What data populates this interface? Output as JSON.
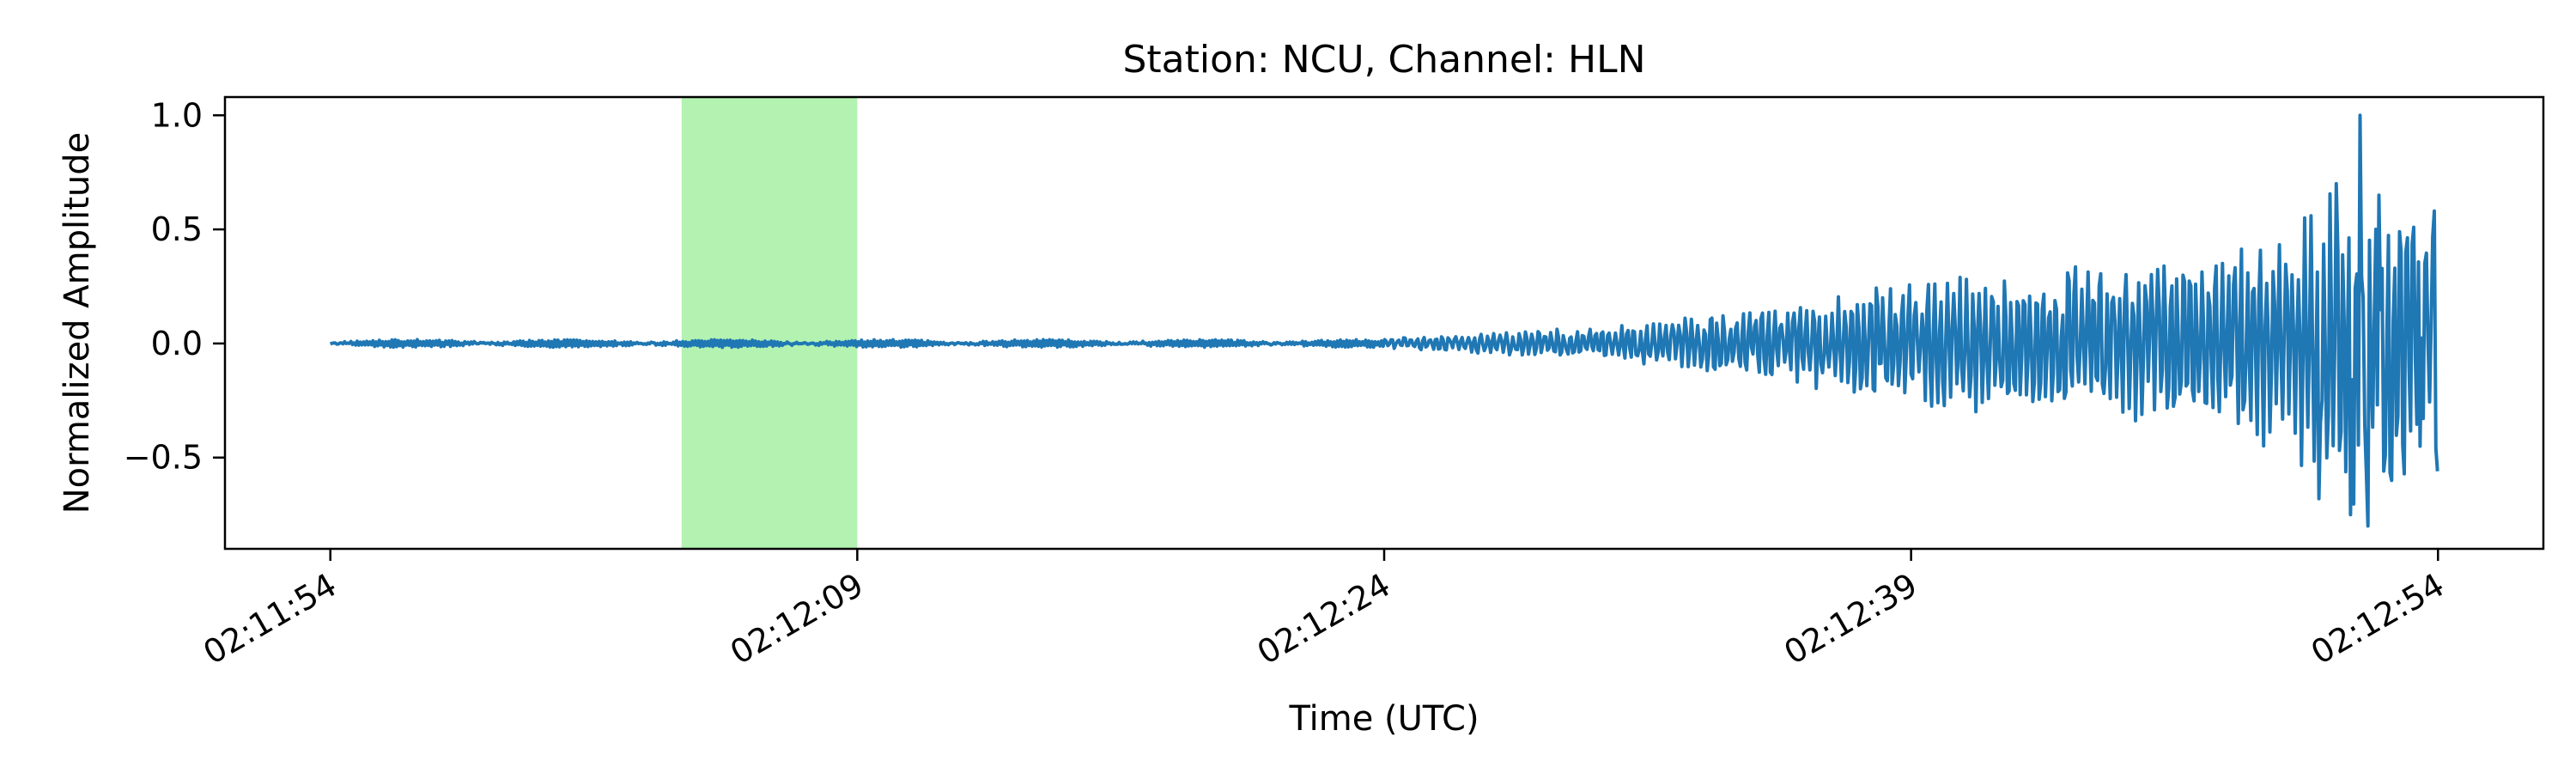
{
  "chart_data": {
    "type": "line",
    "title": "Station: NCU, Channel: HLN",
    "xlabel": "Time (UTC)",
    "ylabel": "Normalized Amplitude",
    "x_ticks": [
      "02:11:54",
      "02:12:09",
      "02:12:24",
      "02:12:39",
      "02:12:54"
    ],
    "x_tick_values_s": [
      0,
      15,
      30,
      45,
      60
    ],
    "xlim_s": [
      -3,
      63
    ],
    "y_ticks": [
      "1.0",
      "0.5",
      "0.0",
      "−0.5"
    ],
    "y_tick_values": [
      1.0,
      0.5,
      0.0,
      -0.5
    ],
    "ylim": [
      -0.9,
      1.08
    ],
    "grid": false,
    "highlight_span": {
      "from": "02:12:04",
      "to": "02:12:09",
      "color": "#b3f2b0"
    },
    "series": [
      {
        "color": "#1f77b4",
        "envelope": [
          [
            0,
            0.02
          ],
          [
            10,
            0.02
          ],
          [
            14,
            0.02
          ],
          [
            20,
            0.02
          ],
          [
            30,
            0.02
          ],
          [
            33,
            0.05
          ],
          [
            36,
            0.07
          ],
          [
            39,
            0.12
          ],
          [
            42,
            0.2
          ],
          [
            45,
            0.28
          ],
          [
            48,
            0.33
          ],
          [
            51,
            0.35
          ],
          [
            54,
            0.4
          ],
          [
            56,
            0.55
          ],
          [
            58,
            0.85
          ],
          [
            59,
            0.7
          ],
          [
            60,
            0.55
          ]
        ],
        "peaks": [
          [
            56.2,
            0.55
          ],
          [
            56.6,
            -0.68
          ],
          [
            57.1,
            0.7
          ],
          [
            57.5,
            -0.75
          ],
          [
            57.8,
            1.0
          ],
          [
            58.0,
            -0.8
          ],
          [
            58.3,
            0.65
          ],
          [
            58.7,
            -0.6
          ],
          [
            59.1,
            0.4
          ],
          [
            59.5,
            -0.45
          ],
          [
            59.9,
            0.58
          ],
          [
            60.0,
            -0.56
          ]
        ]
      }
    ]
  }
}
